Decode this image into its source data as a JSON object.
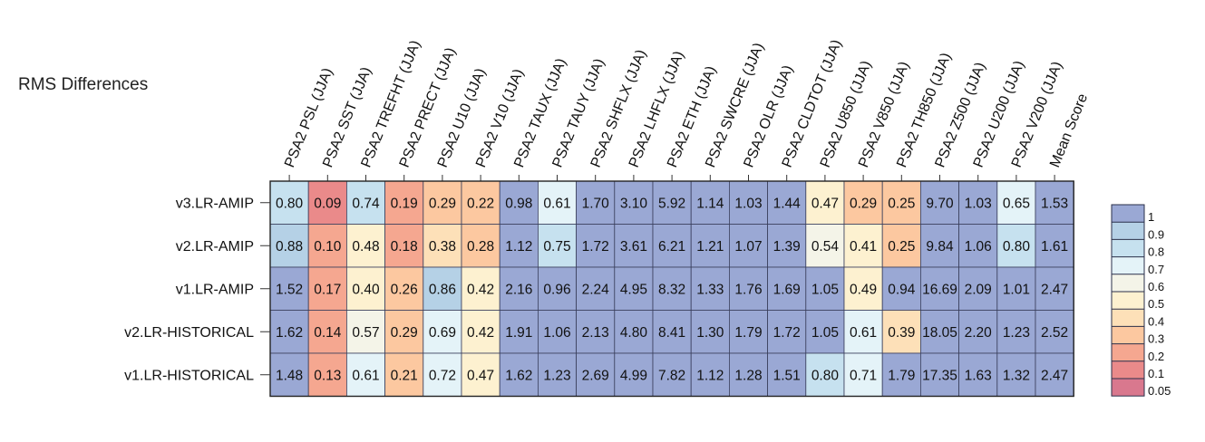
{
  "chart_data": {
    "type": "heatmap",
    "title": "RMS Differences",
    "columns": [
      "PSA2 PSL (JJA)",
      "PSA2 SST (JJA)",
      "PSA2 TREFHT (JJA)",
      "PSA2 PRECT (JJA)",
      "PSA2 U10 (JJA)",
      "PSA2 V10 (JJA)",
      "PSA2 TAUX (JJA)",
      "PSA2 TAUY (JJA)",
      "PSA2 SHFLX (JJA)",
      "PSA2 LHFLX (JJA)",
      "PSA2 ETH (JJA)",
      "PSA2 SWCRE (JJA)",
      "PSA2 OLR (JJA)",
      "PSA2 CLDTOT (JJA)",
      "PSA2 U850 (JJA)",
      "PSA2 V850 (JJA)",
      "PSA2 TH850 (JJA)",
      "PSA2 Z500 (JJA)",
      "PSA2 U200 (JJA)",
      "PSA2 V200 (JJA)",
      "Mean Score"
    ],
    "rows": [
      "v3.LR-AMIP",
      "v2.LR-AMIP",
      "v1.LR-AMIP",
      "v2.LR-HISTORICAL",
      "v1.LR-HISTORICAL"
    ],
    "values": [
      [
        "0.80",
        "0.09",
        "0.74",
        "0.19",
        "0.29",
        "0.22",
        "0.98",
        "0.61",
        "1.70",
        "3.10",
        "5.92",
        "1.14",
        "1.03",
        "1.44",
        "0.47",
        "0.29",
        "0.25",
        "9.70",
        "1.03",
        "0.65",
        "1.53"
      ],
      [
        "0.88",
        "0.10",
        "0.48",
        "0.18",
        "0.38",
        "0.28",
        "1.12",
        "0.75",
        "1.72",
        "3.61",
        "6.21",
        "1.21",
        "1.07",
        "1.39",
        "0.54",
        "0.41",
        "0.25",
        "9.84",
        "1.06",
        "0.80",
        "1.61"
      ],
      [
        "1.52",
        "0.17",
        "0.40",
        "0.26",
        "0.86",
        "0.42",
        "2.16",
        "0.96",
        "2.24",
        "4.95",
        "8.32",
        "1.33",
        "1.76",
        "1.69",
        "1.05",
        "0.49",
        "0.94",
        "16.69",
        "2.09",
        "1.01",
        "2.47"
      ],
      [
        "1.62",
        "0.14",
        "0.57",
        "0.29",
        "0.69",
        "0.42",
        "1.91",
        "1.06",
        "2.13",
        "4.80",
        "8.41",
        "1.30",
        "1.79",
        "1.72",
        "1.05",
        "0.61",
        "0.39",
        "18.05",
        "2.20",
        "1.23",
        "2.52"
      ],
      [
        "1.48",
        "0.13",
        "0.61",
        "0.21",
        "0.72",
        "0.47",
        "1.62",
        "1.23",
        "2.69",
        "4.99",
        "7.82",
        "1.12",
        "1.28",
        "1.51",
        "0.80",
        "0.71",
        "1.79",
        "17.35",
        "1.63",
        "1.32",
        "2.47"
      ]
    ],
    "colorbar": {
      "tick_labels": [
        "1",
        "0.9",
        "0.8",
        "0.7",
        "0.6",
        "0.5",
        "0.4",
        "0.3",
        "0.2",
        "0.1",
        "0.05"
      ],
      "colors": [
        "#9aa8d4",
        "#b5d1e6",
        "#c6e1ef",
        "#e4f3f8",
        "#f4f4e8",
        "#fdf1d0",
        "#fde0b8",
        "#fcc8a0",
        "#f5a790",
        "#ea8a8a",
        "#d9788e"
      ]
    }
  }
}
